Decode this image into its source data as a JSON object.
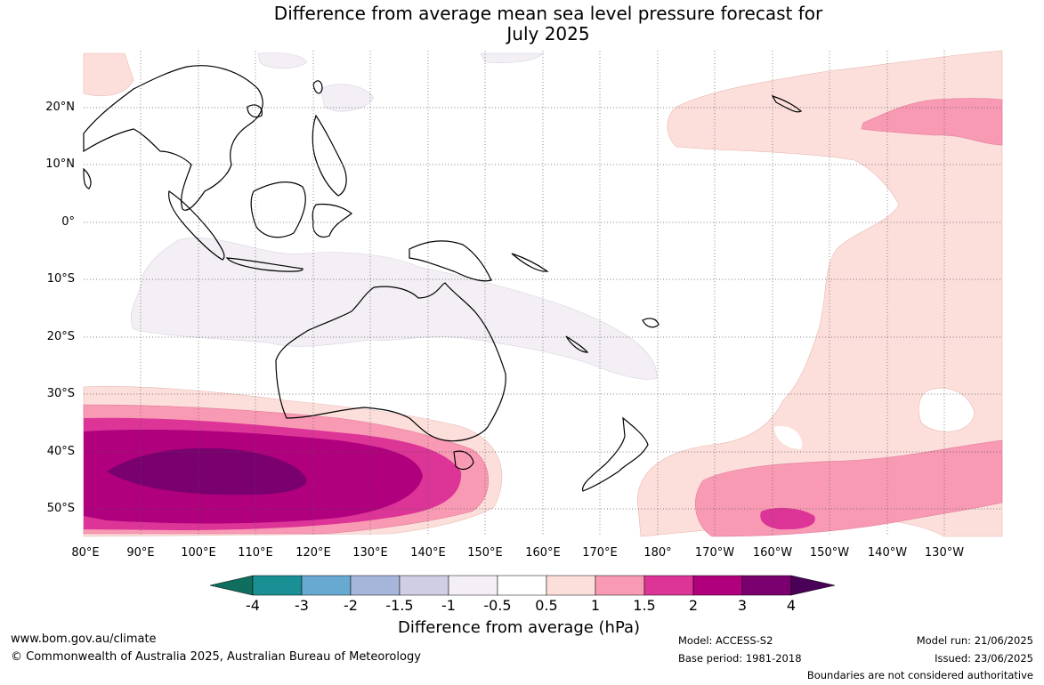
{
  "title": {
    "line1": "Difference from average mean sea level pressure forecast for",
    "line2": "July 2025"
  },
  "axes": {
    "lat_labels": [
      "20°N",
      "10°N",
      "0°",
      "10°S",
      "20°S",
      "30°S",
      "40°S",
      "50°S"
    ],
    "lon_labels": [
      "80°E",
      "90°E",
      "100°E",
      "110°E",
      "120°E",
      "130°E",
      "140°E",
      "150°E",
      "160°E",
      "170°E",
      "180°",
      "170°W",
      "160°W",
      "150°W",
      "140°W",
      "130°W"
    ]
  },
  "colorbar": {
    "ticks": [
      "-4",
      "-3",
      "-2",
      "-1.5",
      "-1",
      "-0.5",
      "0.5",
      "1",
      "1.5",
      "2",
      "3",
      "4"
    ],
    "colors": [
      "#106e5f",
      "#1a8f94",
      "#68a9d2",
      "#a6b6da",
      "#cfcee4",
      "#f3eff5",
      "#ffffff",
      "#fcdfdb",
      "#f89ab4",
      "#dc3597",
      "#b0007d",
      "#7a006f",
      "#4b0057"
    ],
    "label": "Difference from average (hPa)"
  },
  "footer": {
    "website": "www.bom.gov.au/climate",
    "copyright": "© Commonwealth of Australia 2025, Australian Bureau of Meteorology",
    "model": "Model: ACCESS-S2",
    "base_period": "Base period: 1981-2018",
    "model_run": "Model run: 21/06/2025",
    "issued": "Issued: 23/06/2025",
    "disclaimer": "Boundaries are not considered authoritative"
  }
}
